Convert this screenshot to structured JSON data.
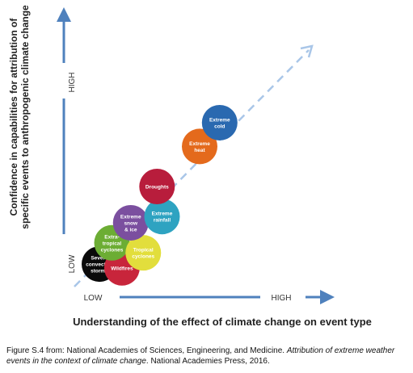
{
  "chart_data": {
    "type": "scatter",
    "xlabel": "Understanding of the effect of climate change on event type",
    "ylabel_lines": [
      "Confidence in capabilities for attribution of",
      "specific events to anthropogenic climate change"
    ],
    "x_tick_labels": {
      "low": "LOW",
      "high": "HIGH"
    },
    "y_tick_labels": {
      "low": "LOW",
      "high": "HIGH"
    },
    "reference_line": "dashed diagonal",
    "xlim": [
      0,
      10
    ],
    "ylim": [
      0,
      10
    ],
    "points": [
      {
        "label": "Severe convective storms",
        "lines": [
          "Severe",
          "convective",
          "storms"
        ],
        "x": 1.0,
        "y": 0.9,
        "color": "#0a0a0a",
        "text_color": "#ffffff"
      },
      {
        "label": "Wildfires",
        "lines": [
          "Wildfires"
        ],
        "x": 1.9,
        "y": 0.75,
        "color": "#c8253b",
        "text_color": "#ffffff"
      },
      {
        "label": "Extra-tropical cyclones",
        "lines": [
          "Extra-",
          "tropical",
          "cyclones"
        ],
        "x": 1.5,
        "y": 1.75,
        "color": "#6cad34",
        "text_color": "#ffffff"
      },
      {
        "label": "Tropical cyclones",
        "lines": [
          "Tropical",
          "cyclones"
        ],
        "x": 2.75,
        "y": 1.35,
        "color": "#e2de3c",
        "text_color": "#ffffff"
      },
      {
        "label": "Extreme snow & ice",
        "lines": [
          "Extreme",
          "snow",
          "& ice"
        ],
        "x": 2.25,
        "y": 2.55,
        "color": "#7b4f9f",
        "text_color": "#ffffff"
      },
      {
        "label": "Extreme rainfall",
        "lines": [
          "Extreme",
          "rainfall"
        ],
        "x": 3.5,
        "y": 2.8,
        "color": "#2ea3c1",
        "text_color": "#ffffff"
      },
      {
        "label": "Droughts",
        "lines": [
          "Droughts"
        ],
        "x": 3.3,
        "y": 4.0,
        "color": "#b81d3c",
        "text_color": "#ffffff"
      },
      {
        "label": "Extreme heat",
        "lines": [
          "Extreme",
          "heat"
        ],
        "x": 5.0,
        "y": 5.6,
        "color": "#e46a1c",
        "text_color": "#ffffff"
      },
      {
        "label": "Extreme cold",
        "lines": [
          "Extreme",
          "cold"
        ],
        "x": 5.8,
        "y": 6.55,
        "color": "#2a69b0",
        "text_color": "#ffffff"
      }
    ]
  },
  "caption": {
    "prefix": "Figure S.4 from: National Academies of Sciences, Engineering, and Medicine. ",
    "title": "Attribution of extreme weather events in the context of climate change",
    "suffix": ". National Academies Press, 2016."
  },
  "colors": {
    "axis": "#4f81bd",
    "dashed_line": "#a9c6e8"
  }
}
